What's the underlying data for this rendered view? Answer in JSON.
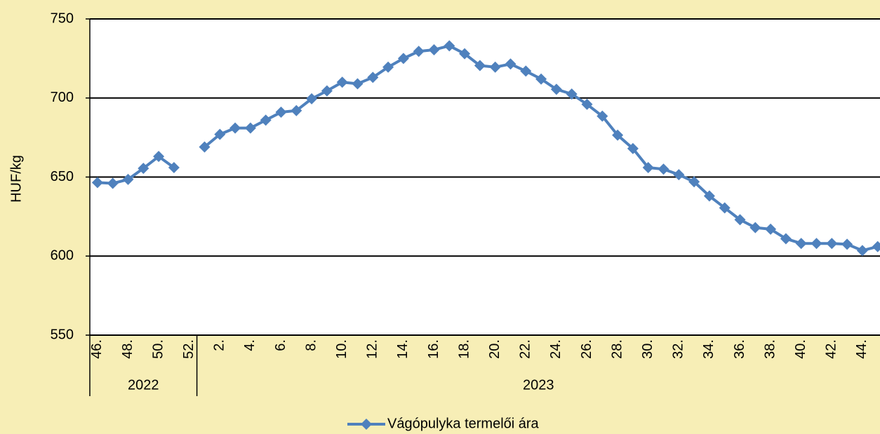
{
  "chart_data": {
    "type": "line",
    "ylabel": "HUF/kg",
    "categories": [
      "46.",
      null,
      "48.",
      null,
      "50.",
      null,
      "52.",
      null,
      "2.",
      null,
      "4.",
      null,
      "6.",
      null,
      "8.",
      null,
      "10.",
      null,
      "12.",
      null,
      "14.",
      null,
      "16.",
      null,
      "18.",
      null,
      "20.",
      null,
      "22.",
      null,
      "24.",
      null,
      "26.",
      null,
      "28.",
      null,
      "30.",
      null,
      "32.",
      null,
      "34.",
      null,
      "36.",
      null,
      "38.",
      null,
      "40.",
      null,
      "42.",
      null,
      "44.",
      null
    ],
    "groups": [
      {
        "name": "2022",
        "count": 7
      },
      {
        "name": "2023",
        "count": 45
      }
    ],
    "series": [
      {
        "name": "Vágópulyka termelői ára",
        "color": "#4f81bd",
        "values": [
          646.5,
          646,
          648.5,
          655.5,
          663,
          656,
          null,
          669,
          677,
          681,
          681,
          686,
          691,
          692,
          699.5,
          704.5,
          710,
          709,
          713,
          719.5,
          725,
          729.5,
          730.5,
          733,
          728,
          720.5,
          719.5,
          721.5,
          717,
          712,
          705.5,
          702.5,
          696,
          688.5,
          676.5,
          668,
          656,
          655,
          651.5,
          647,
          638,
          630.5,
          623,
          618,
          617,
          611,
          608,
          608,
          608,
          607.5,
          603.5,
          606
        ]
      }
    ],
    "ylim": [
      550,
      750
    ],
    "yticks": [
      550,
      600,
      650,
      700,
      750
    ],
    "grid": true,
    "legend": "bottom"
  }
}
